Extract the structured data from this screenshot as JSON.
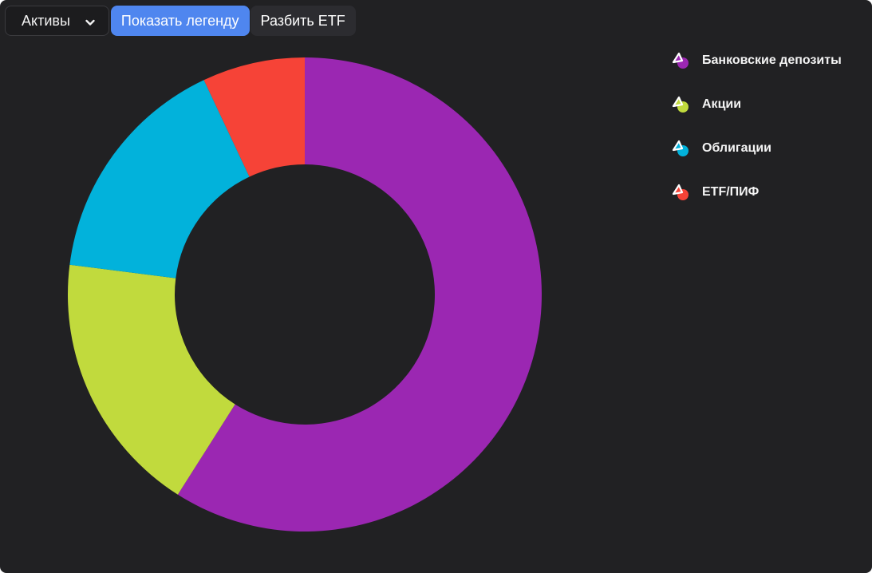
{
  "toolbar": {
    "dropdown_label": "Активы",
    "show_legend_label": "Показать легенду",
    "split_etf_label": "Разбить ETF"
  },
  "colors": {
    "background": "#212123",
    "accent": "#4f86ef"
  },
  "chart_data": {
    "type": "pie",
    "donut": true,
    "legend_position": "right",
    "slices": [
      {
        "name": "Банковские депозиты",
        "value": 59,
        "color": "#9b27b2"
      },
      {
        "name": "Акции",
        "value": 18,
        "color": "#c1da3d"
      },
      {
        "name": "Облигации",
        "value": 16,
        "color": "#02b2db"
      },
      {
        "name": "ETF/ПИФ",
        "value": 7,
        "color": "#f64337"
      }
    ]
  }
}
